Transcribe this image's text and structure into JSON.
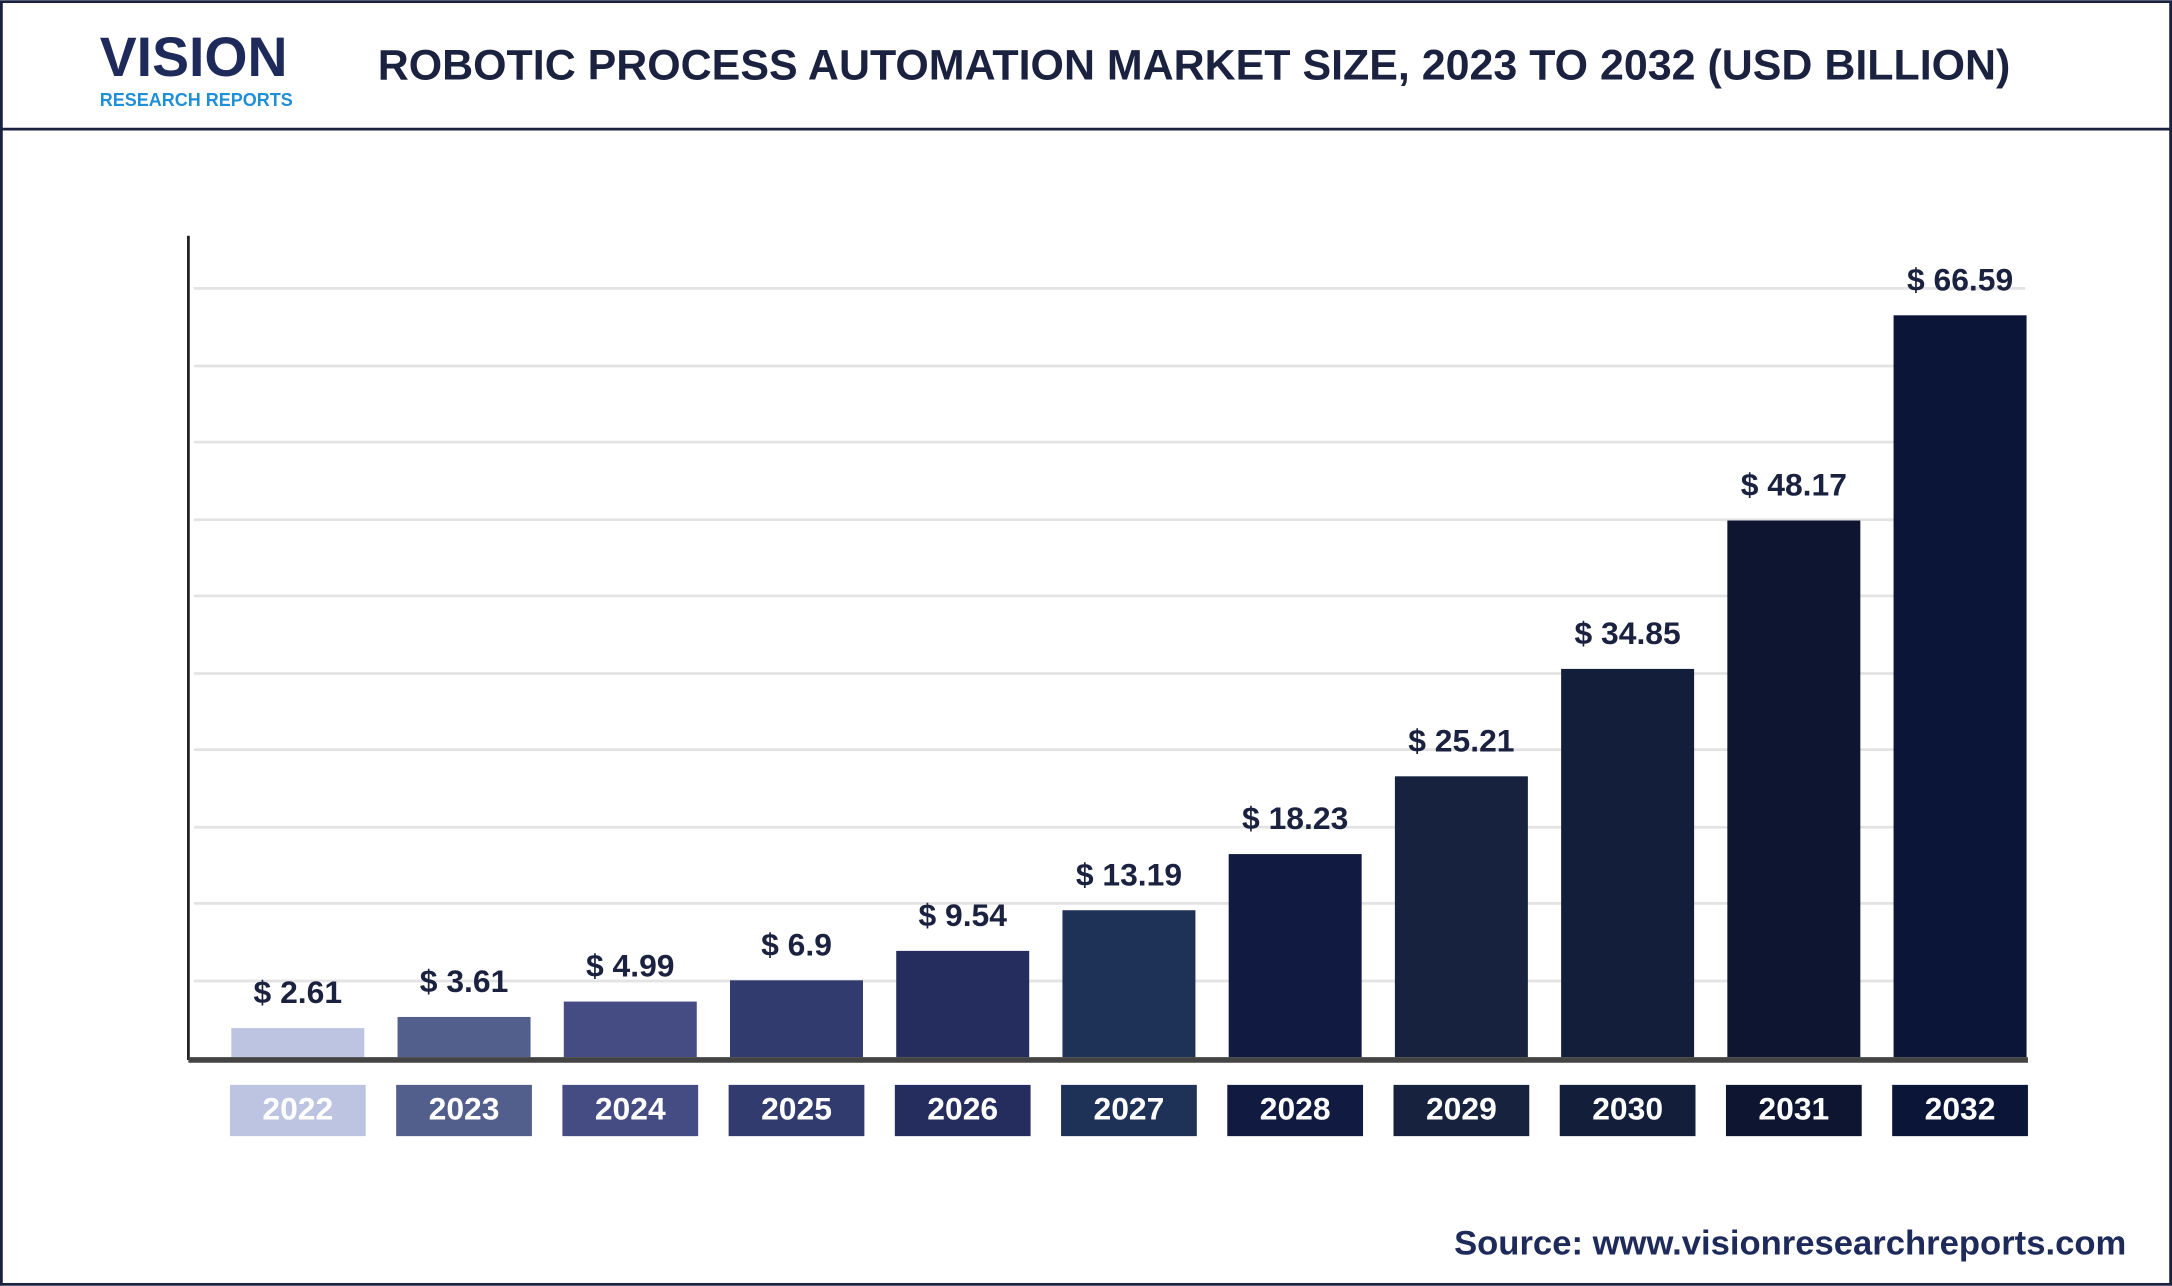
{
  "logo": {
    "name": "VISION",
    "sub": "RESEARCH REPORTS"
  },
  "source": "Source: www.visionresearchreports.com",
  "chart_data": {
    "type": "bar",
    "title": "ROBOTIC PROCESS AUTOMATION MARKET SIZE, 2023 TO 2032 (USD BILLION)",
    "categories": [
      "2022",
      "2023",
      "2024",
      "2025",
      "2026",
      "2027",
      "2028",
      "2029",
      "2030",
      "2031",
      "2032"
    ],
    "values": [
      2.61,
      3.61,
      4.99,
      6.9,
      9.54,
      13.19,
      18.23,
      25.21,
      34.85,
      48.17,
      66.59
    ],
    "value_labels": [
      "$ 2.61",
      "$ 3.61",
      "$ 4.99",
      "$ 6.9",
      "$ 9.54",
      "$ 13.19",
      "$ 18.23",
      "$ 25.21",
      "$ 34.85",
      "$ 48.17",
      "$ 66.59"
    ],
    "colors": [
      "#bcc4e2",
      "#525e8c",
      "#454c83",
      "#323b6d",
      "#252d5e",
      "#1e3157",
      "#111a40",
      "#17223f",
      "#131f3a",
      "#0d1530",
      "#0b1538"
    ],
    "ylim": [
      0,
      70
    ]
  }
}
